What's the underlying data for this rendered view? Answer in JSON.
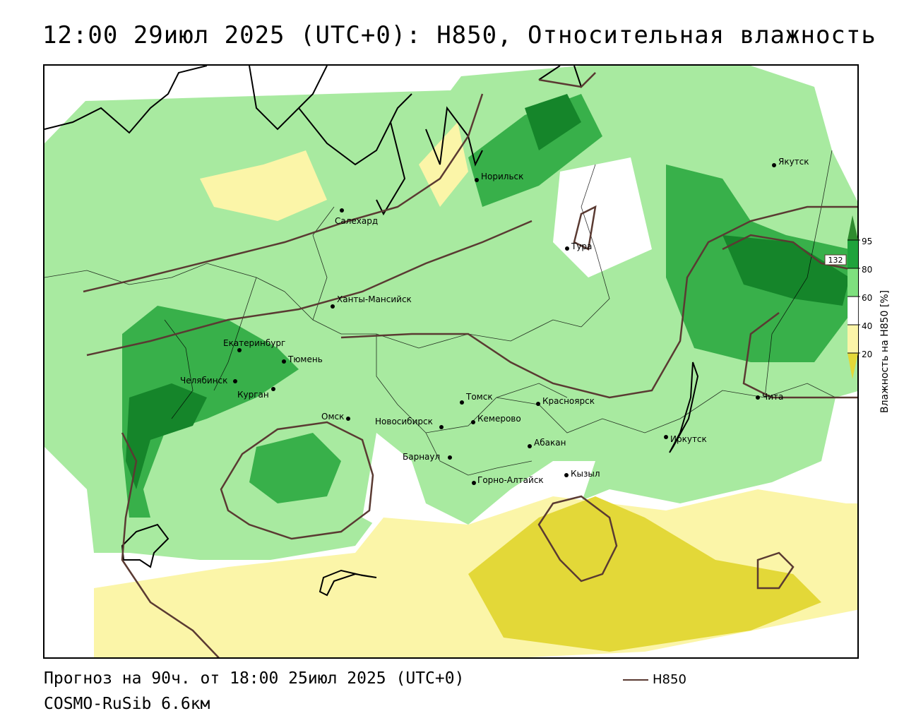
{
  "title": "12:00 29июл 2025 (UTC+0): H850, Относительная влажность",
  "footer": {
    "forecast": "Прогноз на 90ч. от 18:00 25июл 2025 (UTC+0)",
    "model": "COSMO-RuSib 6.6км",
    "contour_legend_label": "H850"
  },
  "legend": {
    "title": "Влажность на H850 [%]",
    "ticks": [
      "95",
      "80",
      "60",
      "40",
      "20"
    ],
    "colors": {
      "above_95": "#2e8b2e",
      "80_95": "#1f9a3a",
      "60_80": "#7ee07e",
      "40_60": "#ffffff",
      "20_40": "#fbf5a8",
      "below_20": "#e3d838"
    }
  },
  "map": {
    "contour_label": "132",
    "contour_color": "#5a3a32",
    "cities": [
      {
        "name": "Якутск"
      },
      {
        "name": "Норильск"
      },
      {
        "name": "Салехард"
      },
      {
        "name": "Тура"
      },
      {
        "name": "Ханты-Мансийск"
      },
      {
        "name": "Екатеринбург"
      },
      {
        "name": "Тюмень"
      },
      {
        "name": "Челябинск"
      },
      {
        "name": "Курган"
      },
      {
        "name": "Омск"
      },
      {
        "name": "Новосибирск"
      },
      {
        "name": "Томск"
      },
      {
        "name": "Кемерово"
      },
      {
        "name": "Красноярск"
      },
      {
        "name": "Абакан"
      },
      {
        "name": "Барнаул"
      },
      {
        "name": "Горно-Алтайск"
      },
      {
        "name": "Кызыл"
      },
      {
        "name": "Иркутск"
      },
      {
        "name": "Чита"
      }
    ]
  }
}
